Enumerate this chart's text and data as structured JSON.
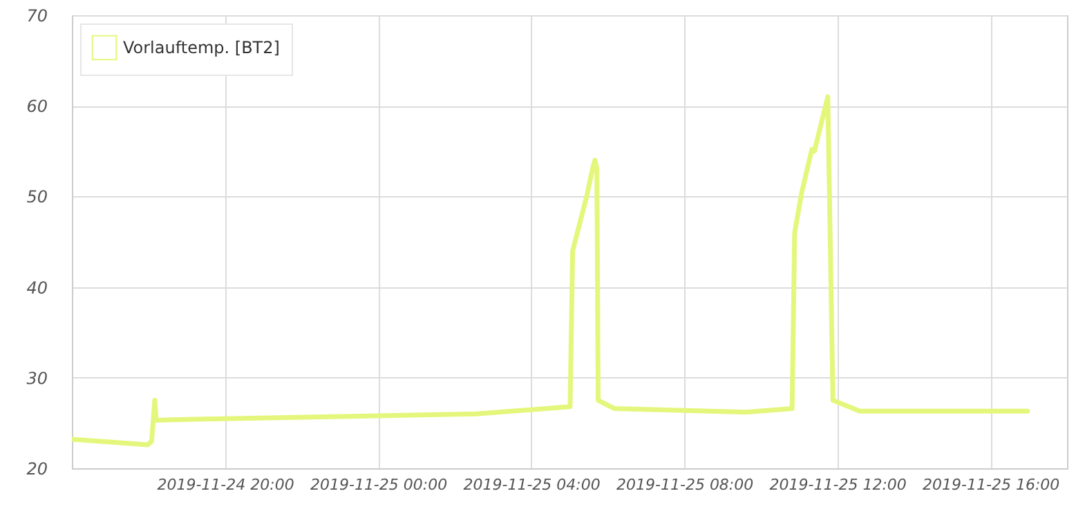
{
  "chart_data": {
    "type": "line",
    "x": [
      "2019-11-24T16:00",
      "2019-11-24T17:59",
      "2019-11-24T18:05",
      "2019-11-24T18:10",
      "2019-11-24T18:12",
      "2019-11-24T19:00",
      "2019-11-25T02:34",
      "2019-11-25T05:01",
      "2019-11-25T05:05",
      "2019-11-25T05:27",
      "2019-11-25T05:36",
      "2019-11-25T05:40",
      "2019-11-25T05:43",
      "2019-11-25T05:45",
      "2019-11-25T06:10",
      "2019-11-25T09:37",
      "2019-11-25T10:49",
      "2019-11-25T10:53",
      "2019-11-25T11:04",
      "2019-11-25T11:20",
      "2019-11-25T11:24",
      "2019-11-25T11:45",
      "2019-11-25T11:53",
      "2019-11-25T12:35",
      "2019-11-25T16:58"
    ],
    "series": [
      {
        "name": "Vorlauftemp. [BT2]",
        "color": "#e4f77c",
        "values": [
          23.2,
          22.6,
          23,
          27.5,
          25.3,
          25.4,
          26.0,
          26.8,
          44,
          50,
          53,
          54,
          53,
          27.5,
          26.6,
          26.2,
          26.6,
          46,
          50.4,
          55.2,
          55,
          61,
          27.5,
          26.3,
          26.3
        ]
      }
    ],
    "xlim": [
      "2019-11-24T16:00",
      "2019-11-25T18:00"
    ],
    "xticks": [
      {
        "value": "2019-11-24T20:00",
        "label": "2019-11-24 20:00"
      },
      {
        "value": "2019-11-25T00:00",
        "label": "2019-11-25 00:00"
      },
      {
        "value": "2019-11-25T04:00",
        "label": "2019-11-25 04:00"
      },
      {
        "value": "2019-11-25T08:00",
        "label": "2019-11-25 08:00"
      },
      {
        "value": "2019-11-25T12:00",
        "label": "2019-11-25 12:00"
      },
      {
        "value": "2019-11-25T16:00",
        "label": "2019-11-25 16:00"
      }
    ],
    "ylim": [
      20,
      70
    ],
    "yticks": [
      20,
      30,
      40,
      50,
      60,
      70
    ],
    "grid": true,
    "legend": "top left",
    "marker": "none",
    "line_style": "solid"
  }
}
